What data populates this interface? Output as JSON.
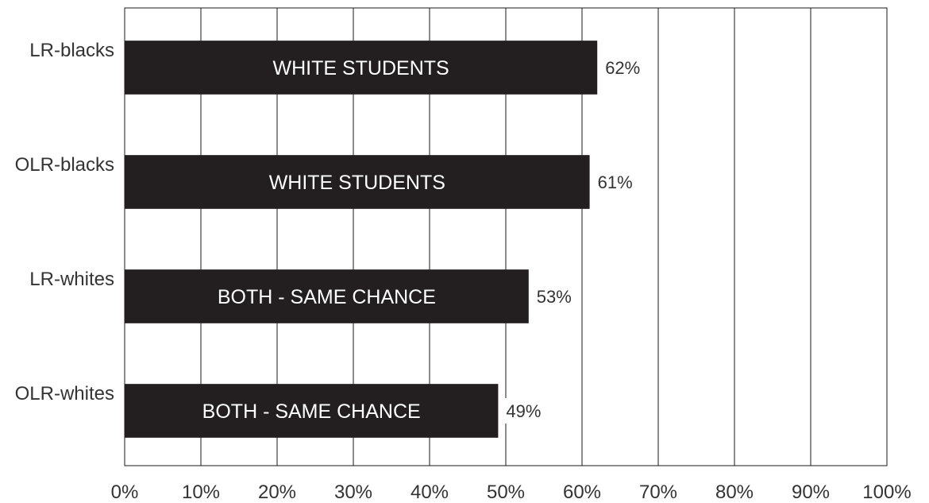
{
  "chart_data": {
    "type": "bar",
    "orientation": "horizontal",
    "categories": [
      "LR-blacks",
      "OLR-blacks",
      "LR-whites",
      "OLR-whites"
    ],
    "values": [
      62,
      61,
      53,
      49
    ],
    "bar_labels": [
      "WHITE STUDENTS",
      "WHITE STUDENTS",
      "BOTH - SAME CHANCE",
      "BOTH - SAME CHANCE"
    ],
    "value_labels": [
      "62%",
      "61%",
      "53%",
      "49%"
    ],
    "xlim": [
      0,
      100
    ],
    "x_ticks": [
      0,
      10,
      20,
      30,
      40,
      50,
      60,
      70,
      80,
      90,
      100
    ],
    "x_tick_labels": [
      "0%",
      "10%",
      "20%",
      "30%",
      "40%",
      "50%",
      "60%",
      "70%",
      "80%",
      "90%",
      "100%"
    ],
    "grid": "vertical",
    "legend": "none",
    "title": "",
    "xlabel": "",
    "ylabel": "",
    "colors": {
      "bar": "#231f20",
      "bar_text": "#ffffff",
      "grid": "#1a1a1a",
      "text": "#333333"
    }
  }
}
